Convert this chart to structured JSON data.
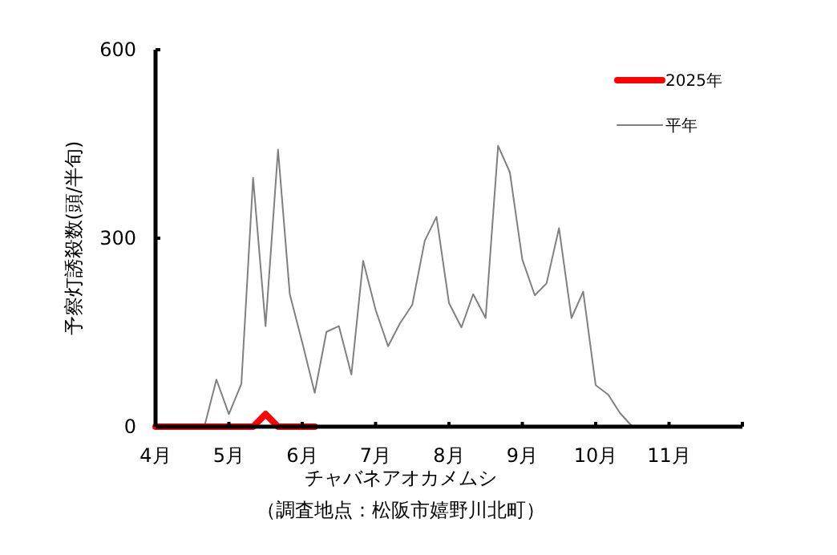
{
  "chart_data": {
    "type": "line",
    "xlabel": "チャバネアオカメムシ",
    "ylabel": "予察灯誘殺数(頭/半旬)",
    "annotations": [
      "（調査地点：松阪市嬉野川北町）"
    ],
    "xlim": [
      4,
      12
    ],
    "xticks": [
      {
        "value": 4,
        "label": "4月"
      },
      {
        "value": 5,
        "label": "5月"
      },
      {
        "value": 6,
        "label": "6月"
      },
      {
        "value": 7,
        "label": "7月"
      },
      {
        "value": 8,
        "label": "8月"
      },
      {
        "value": 9,
        "label": "9月"
      },
      {
        "value": 10,
        "label": "10月"
      },
      {
        "value": 11,
        "label": "11月"
      },
      {
        "value": 12,
        "label": null
      }
    ],
    "ylim": [
      0,
      600
    ],
    "yticks": [
      0,
      300,
      600
    ],
    "grid": false,
    "legend": "top right",
    "marker": "none",
    "series": [
      {
        "name": "2025年",
        "color": "#ff0000",
        "x": [
          4,
          4.17,
          4.33,
          4.5,
          4.67,
          4.83,
          5,
          5.17,
          5.33,
          5.5,
          5.67,
          5.83,
          6,
          6.17
        ],
        "values": [
          0,
          0,
          0,
          0,
          0,
          0,
          0,
          0,
          0,
          20,
          0,
          0,
          0,
          0
        ]
      },
      {
        "name": "平年",
        "color": "#808080",
        "x": [
          4,
          4.17,
          4.33,
          4.5,
          4.67,
          4.83,
          5,
          5.17,
          5.33,
          5.5,
          5.67,
          5.83,
          6,
          6.17,
          6.33,
          6.5,
          6.67,
          6.83,
          7,
          7.17,
          7.33,
          7.5,
          7.67,
          7.83,
          8,
          8.17,
          8.33,
          8.5,
          8.67,
          8.83,
          9,
          9.17,
          9.33,
          9.5,
          9.67,
          9.83,
          10,
          10.17,
          10.33,
          10.5,
          10.67,
          10.83,
          11,
          11.17,
          11.33,
          11.5,
          11.67,
          11.83
        ],
        "values": [
          0,
          0,
          0,
          0,
          2,
          75,
          20,
          68,
          396,
          160,
          441,
          211,
          134,
          54,
          151,
          160,
          83,
          264,
          186,
          128,
          164,
          194,
          296,
          334,
          197,
          158,
          211,
          173,
          447,
          405,
          266,
          209,
          228,
          316,
          173,
          215,
          66,
          51,
          22,
          0,
          0,
          0,
          0,
          0,
          0,
          0,
          0,
          0
        ]
      }
    ]
  }
}
